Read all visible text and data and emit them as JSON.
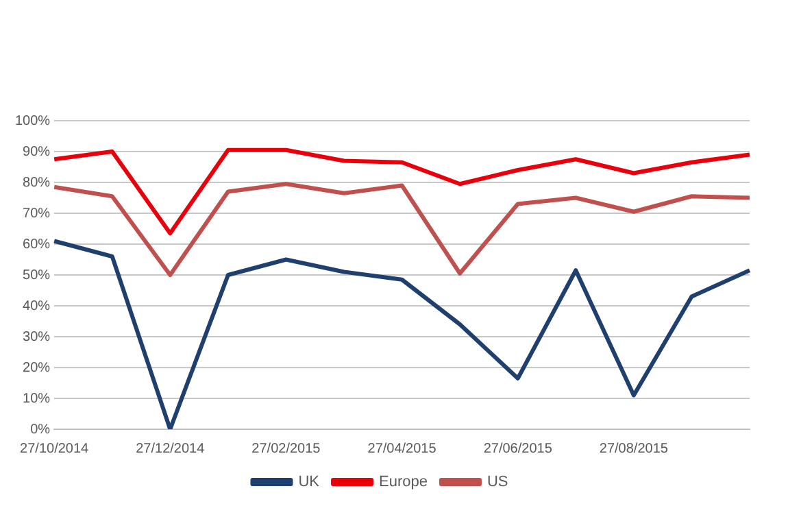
{
  "chart_data": {
    "type": "line",
    "categories": [
      "27/10/2014",
      null,
      "27/12/2014",
      null,
      "27/02/2015",
      null,
      "27/04/2015",
      null,
      "27/06/2015",
      null,
      "27/08/2015",
      null,
      null
    ],
    "series": [
      {
        "name": "UK",
        "color": "#1f3f6e",
        "values": [
          61,
          56,
          0,
          50,
          55,
          51,
          48.5,
          34,
          16.5,
          51.5,
          11,
          43,
          51.5
        ]
      },
      {
        "name": "Europe",
        "color": "#e8000b",
        "values": [
          87.5,
          90,
          63.5,
          90.5,
          90.5,
          87,
          86.5,
          79.5,
          84,
          87.5,
          83,
          86.5,
          89
        ]
      },
      {
        "name": "US",
        "color": "#c0504d",
        "values": [
          78.5,
          75.5,
          50,
          77,
          79.5,
          76.5,
          79,
          50.5,
          73,
          75,
          70.5,
          75.5,
          75
        ]
      }
    ],
    "ylim": [
      0,
      100
    ],
    "yticks": [
      {
        "value": 0,
        "label": "0%"
      },
      {
        "value": 10,
        "label": "10%"
      },
      {
        "value": 20,
        "label": "20%"
      },
      {
        "value": 30,
        "label": "30%"
      },
      {
        "value": 40,
        "label": "40%"
      },
      {
        "value": 50,
        "label": "50%"
      },
      {
        "value": 60,
        "label": "60%"
      },
      {
        "value": 70,
        "label": "70%"
      },
      {
        "value": 80,
        "label": "80%"
      },
      {
        "value": 90,
        "label": "90%"
      },
      {
        "value": 100,
        "label": "100%"
      }
    ],
    "grid": "y",
    "legend": "bottom",
    "marker": "none",
    "line_style": "solid"
  }
}
